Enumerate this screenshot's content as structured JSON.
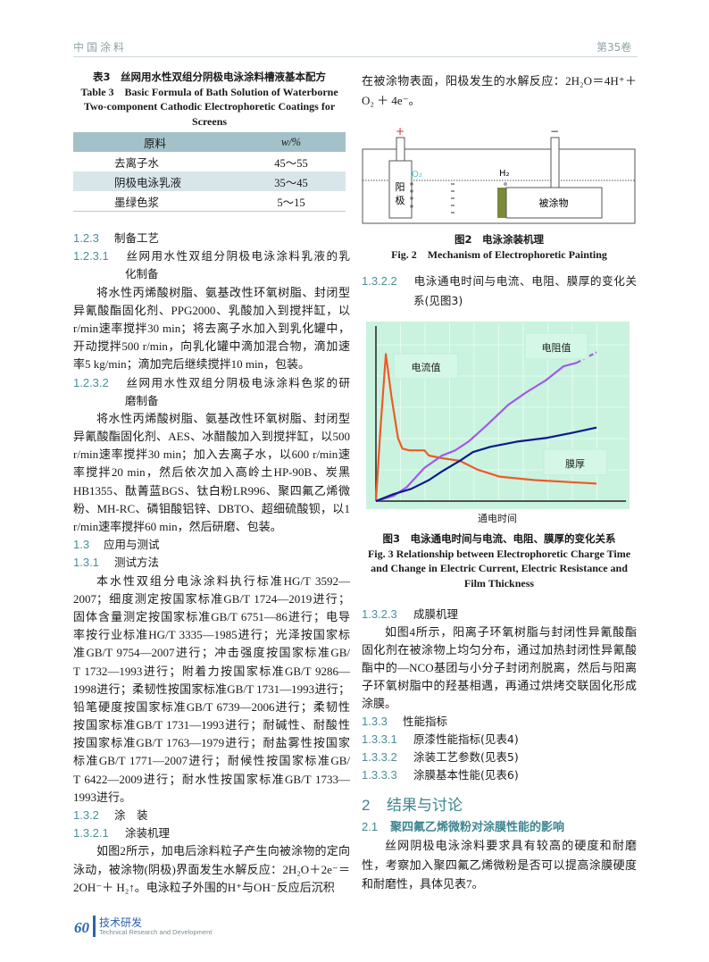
{
  "header": {
    "journal": "中国涂料",
    "volume": "第35卷"
  },
  "left": {
    "table": {
      "caption_cn": "表3　丝网用水性双组分阴极电泳涂料槽液基本配方",
      "caption_en": [
        "Table 3　Basic Formula of Bath Solution of Waterborne",
        "Two-component Cathodic Electrophoretic Coatings for",
        "Screens"
      ],
      "headers": [
        "原料",
        "w/%"
      ],
      "rows": [
        [
          "去离子水",
          "45～55"
        ],
        [
          "阴极电泳乳液",
          "35～45"
        ],
        [
          "墨绿色浆",
          "5～15"
        ]
      ]
    },
    "blocks": [
      {
        "kind": "h",
        "num": "1.2.3",
        "lines": [
          "制备工艺"
        ]
      },
      {
        "kind": "h",
        "num": "1.2.3.1",
        "lines": [
          "丝网用水性双组分阴极电泳涂料乳液的乳",
          "化制备"
        ]
      },
      {
        "kind": "p",
        "lines": [
          "将水性丙烯酸树脂、氨基改性环氧树脂、封闭型",
          "异氰酸酯固化剂、PPG2000、乳酸加入到搅拌缸，以500",
          "r/min速率搅拌30 min；将去离子水加入到乳化罐中，",
          "开动搅拌500 r/min，向乳化罐中滴加混合物，滴加速",
          "率5 kg/min；滴加完后继续搅拌10 min，包装。"
        ]
      },
      {
        "kind": "h",
        "num": "1.2.3.2",
        "lines": [
          "丝网用水性双组分阴极电泳涂料色浆的研",
          "磨制备"
        ]
      },
      {
        "kind": "p",
        "lines": [
          "将水性丙烯酸树脂、氨基改性环氧树脂、封闭型",
          "异氰酸酯固化剂、AES、冰醋酸加入到搅拌缸，以500",
          "r/min速率搅拌30 min；加入去离子水，以600 r/min速",
          "率搅拌20 min，然后依次加入高岭土HP-90B、炭黑",
          "HB1355、酞菁蓝BGS、钛白粉LR996、聚四氟乙烯微",
          "粉、MH-RC、磷钼酸铝锌、DBTO、超细硫酸钡，以1 000",
          "r/min速率搅拌60 min，然后研磨、包装。"
        ]
      },
      {
        "kind": "h",
        "num": "1.3",
        "lines": [
          "应用与测试"
        ]
      },
      {
        "kind": "h",
        "num": "1.3.1",
        "lines": [
          "测试方法"
        ]
      },
      {
        "kind": "p",
        "lines": [
          "本水性双组分电泳涂料执行标准HG/T 3592—",
          "2007；细度测定按国家标准GB/T 1724—2019进行；",
          "固体含量测定按国家标准GB/T 6751—86进行；电导",
          "率按行业标准HG/T 3335—1985进行；光泽按国家标",
          "准GB/T 9754—2007进行；冲击强度按国家标准GB/",
          "T 1732—1993进行；附着力按国家标准GB/T 9286—",
          "1998进行；柔韧性按国家标准GB/T 1731—1993进行；",
          "铅笔硬度按国家标准GB/T 6739—2006进行；柔韧性",
          "按国家标准GB/T 1731—1993进行；耐碱性、耐酸性",
          "按国家标准GB/T 1763—1979进行；耐盐雾性按国家",
          "标准GB/T 1771—2007进行；耐候性按国家标准GB/",
          "T 6422—2009进行；耐水性按国家标准GB/T 1733—",
          "1993进行。"
        ]
      },
      {
        "kind": "h",
        "num": "1.3.2",
        "lines": [
          "涂　装"
        ]
      },
      {
        "kind": "h",
        "num": "1.3.2.1",
        "lines": [
          "涂装机理"
        ]
      },
      {
        "kind": "p",
        "lines": [
          "如图2所示，加电后涂料粒子产生向被涂物的定向",
          "泳动，被涂物(阴极)界面发生水解反应：2H₂O＋2e⁻＝",
          "2OH⁻＋ H₂↑。电泳粒子外围的H⁺与OH⁻反应后沉积"
        ]
      }
    ]
  },
  "right": {
    "top_para": {
      "kind": "p",
      "noindent": true,
      "lines": [
        "在被涂物表面，阳极发生的水解反应：2H₂O＝4H⁺＋",
        "O₂ ＋ 4e⁻。"
      ]
    },
    "fig2": {
      "plus": "+",
      "minus": "−",
      "anode": [
        "阳",
        "极"
      ],
      "o2": "O₂",
      "h2": "H₂",
      "object": "被涂物",
      "caption_cn": "图2　电泳涂装机理",
      "caption_en": "Fig. 2　Mechanism of Electrophoretic Painting"
    },
    "h1322": {
      "kind": "h",
      "num": "1.3.2.2",
      "lines": [
        "电泳通电时间与电流、电阻、膜厚的变化关",
        "系(见图3)"
      ]
    },
    "fig3": {
      "caption_cn": "图3　电泳通电时间与电流、电阻、膜厚的变化关系",
      "caption_en": [
        "Fig. 3 Relationship between Electrophoretic Charge Time",
        "and Change in Electric Current, Electric Resistance and",
        "Film Thickness"
      ]
    },
    "blocks": [
      {
        "kind": "h",
        "num": "1.3.2.3",
        "lines": [
          "成膜机理"
        ]
      },
      {
        "kind": "p",
        "lines": [
          "如图4所示，阳离子环氧树脂与封闭性异氰酸酯",
          "固化剂在被涂物上均匀分布，通过加热封闭性异氰酸",
          "酯中的—NCO基团与小分子封闭剂脱离，然后与阳离",
          "子环氧树脂中的羟基相遇，再通过烘烤交联固化形成",
          "涂膜。"
        ]
      },
      {
        "kind": "h",
        "num": "1.3.3",
        "lines": [
          "性能指标"
        ]
      },
      {
        "kind": "h",
        "num": "1.3.3.1",
        "lines": [
          "原漆性能指标(见表4)"
        ]
      },
      {
        "kind": "h",
        "num": "1.3.3.2",
        "lines": [
          "涂装工艺参数(见表5)"
        ]
      },
      {
        "kind": "h",
        "num": "1.3.3.3",
        "lines": [
          "涂膜基本性能(见表6)"
        ]
      }
    ],
    "sec2": {
      "num": "2",
      "title": "结果与讨论"
    },
    "sec21": {
      "num": "2.1",
      "title": "聚四氟乙烯微粉对涂膜性能的影响"
    },
    "sec21_para": {
      "kind": "p",
      "lines": [
        "丝网阴极电泳涂料要求具有较高的硬度和耐磨",
        "性，考察加入聚四氟乙烯微粉是否可以提高涂膜硬度",
        "和耐磨性，具体见表7。"
      ]
    }
  },
  "chart_data": {
    "type": "line",
    "title": "",
    "xlabel": "通电时间",
    "ylabel": "",
    "xlim": [
      0,
      10
    ],
    "ylim": [
      0,
      100
    ],
    "grid": true,
    "background": "#c9f3df",
    "series": [
      {
        "name": "电流值",
        "color": "#f05a28",
        "x": [
          0,
          0.2,
          0.45,
          0.7,
          1.0,
          1.2,
          1.5,
          2.2,
          2.4,
          3.0,
          3.8,
          4.6,
          5.6,
          7.2,
          10
        ],
        "values": [
          0,
          40,
          84,
          60,
          36,
          30,
          29,
          29,
          26,
          24.5,
          23,
          18,
          14,
          12,
          10
        ]
      },
      {
        "name": "电阻值",
        "color": "#a259e8",
        "x": [
          0,
          0.8,
          1.4,
          2.2,
          3.0,
          3.6,
          4.2,
          5.0,
          6.0,
          6.8,
          7.7,
          8.5,
          9.1,
          10
        ],
        "values": [
          0,
          3,
          8,
          19,
          26,
          29,
          34,
          43,
          55,
          62,
          69,
          77,
          79,
          85
        ]
      },
      {
        "name": "膜厚",
        "color": "#0c1a8c",
        "x": [
          0,
          0.8,
          1.6,
          2.4,
          3.0,
          3.8,
          4.4,
          5.2,
          6.4,
          7.7,
          8.9,
          10
        ],
        "values": [
          0,
          4,
          7,
          12,
          17,
          23,
          28,
          31,
          34,
          36,
          39,
          42
        ]
      }
    ]
  },
  "footer": {
    "page": "60",
    "section_cn": "技术研发",
    "section_en": "Technical Research and Development"
  }
}
